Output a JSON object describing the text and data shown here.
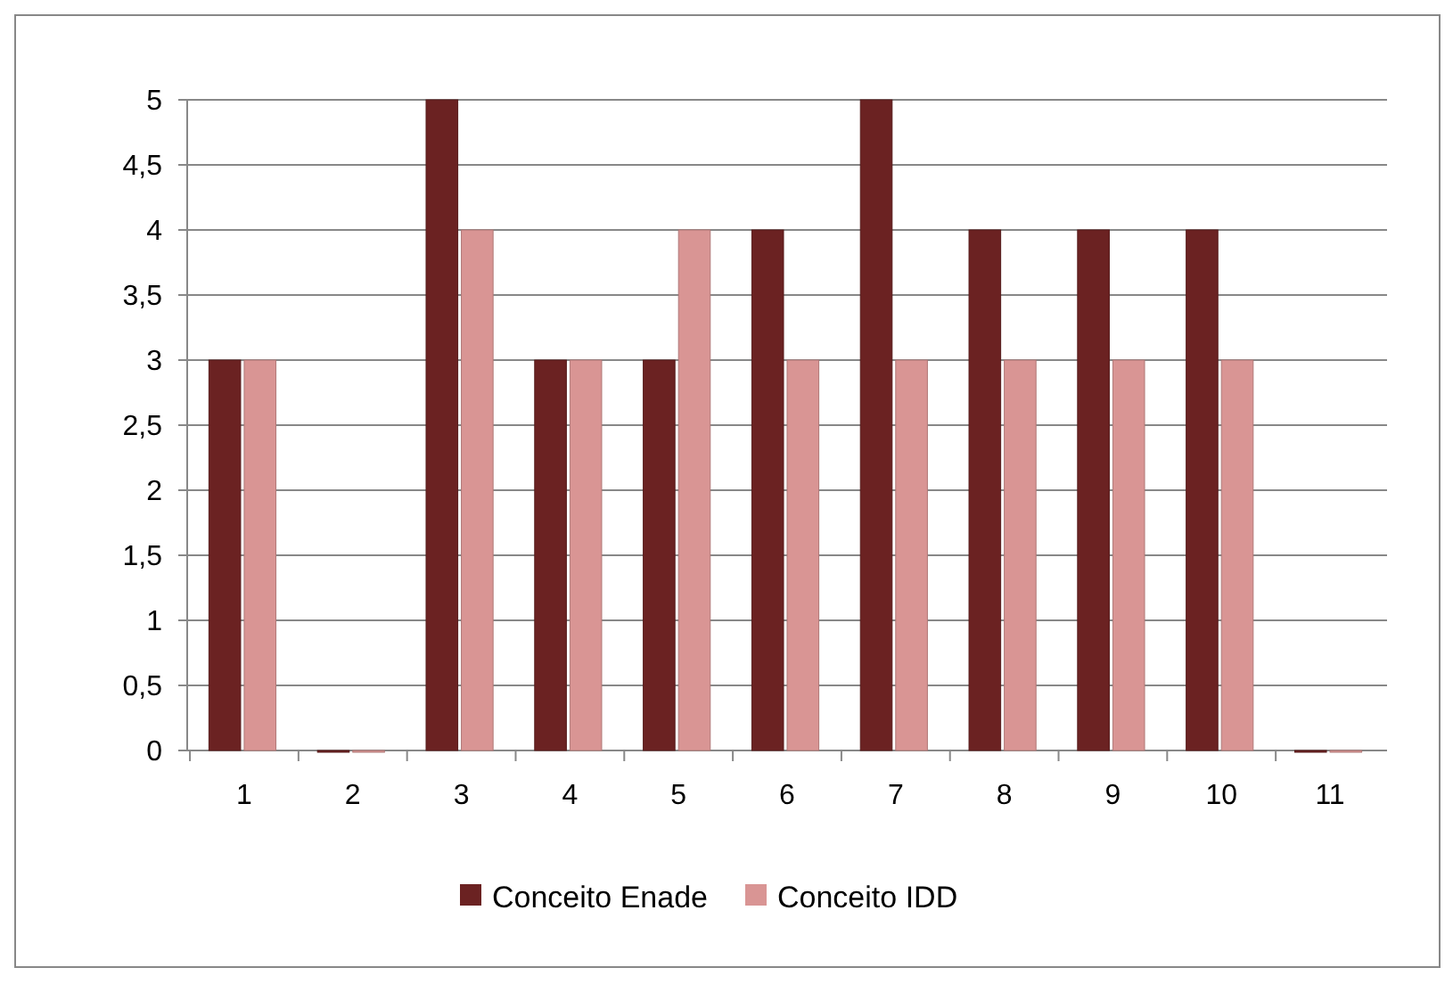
{
  "chart_data": {
    "type": "bar",
    "categories": [
      "1",
      "2",
      "3",
      "4",
      "5",
      "6",
      "7",
      "8",
      "9",
      "10",
      "11"
    ],
    "series": [
      {
        "name": "Conceito Enade",
        "color": "#6b2222",
        "values": [
          3,
          0,
          5,
          3,
          3,
          4,
          5,
          4,
          4,
          4,
          0
        ]
      },
      {
        "name": "Conceito IDD",
        "color": "#d99594",
        "values": [
          3,
          0,
          4,
          3,
          4,
          3,
          3,
          3,
          3,
          3,
          0
        ]
      }
    ],
    "ylim": [
      0,
      5
    ],
    "yticks": [
      0,
      {
        "value": 0.5,
        "label": "0,5"
      },
      1,
      {
        "value": 1.5,
        "label": "1,5"
      },
      2,
      {
        "value": 2.5,
        "label": "2,5"
      },
      3,
      {
        "value": 3.5,
        "label": "3,5"
      },
      4,
      {
        "value": 4.5,
        "label": "4,5"
      },
      5
    ],
    "grid": "y",
    "legend": "bottom"
  }
}
